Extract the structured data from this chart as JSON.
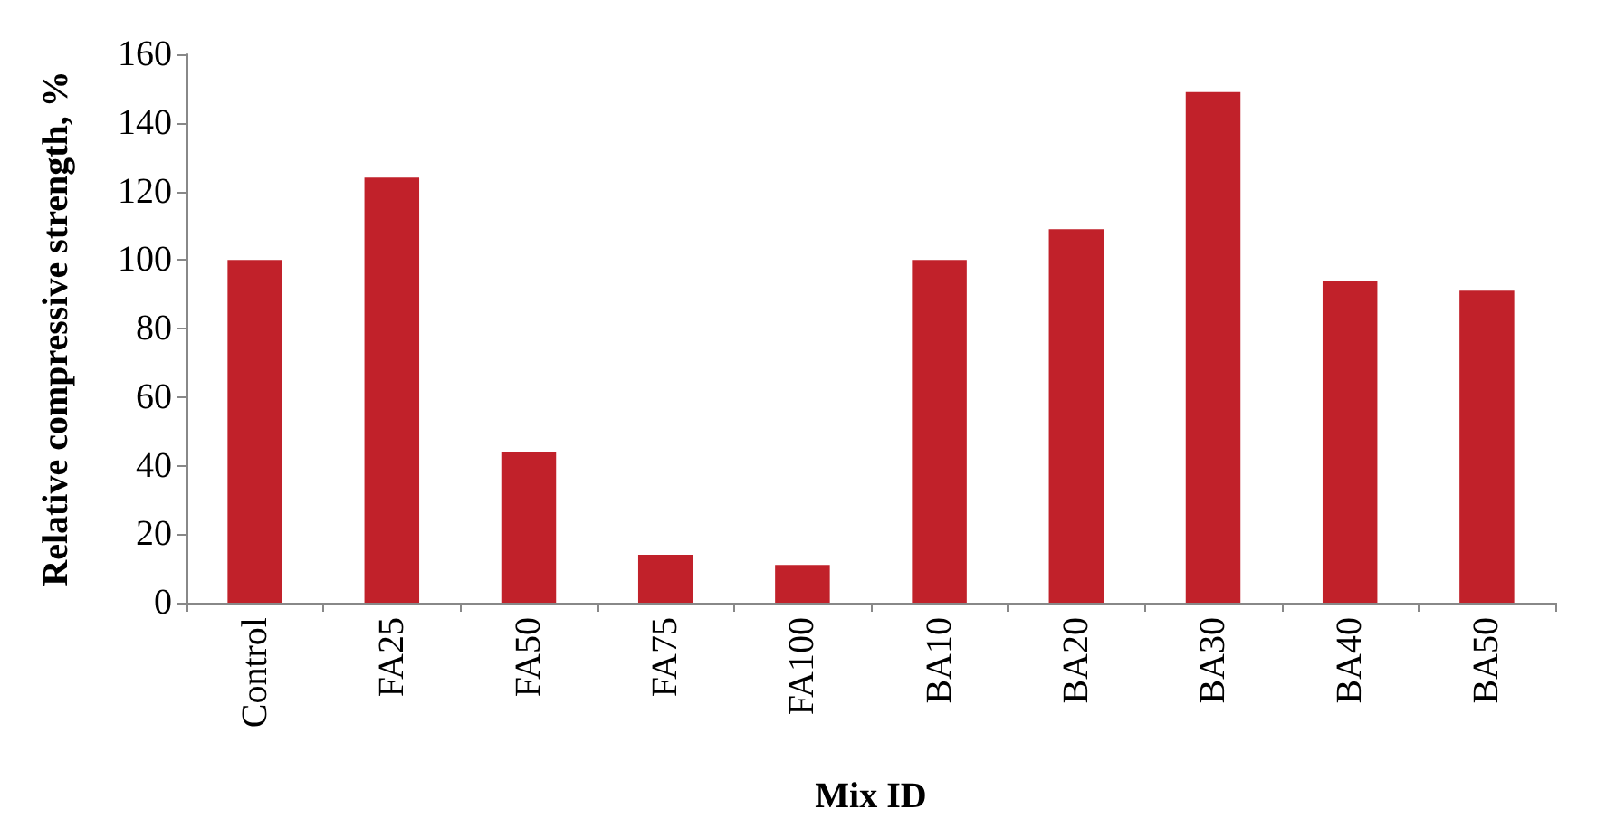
{
  "chart_data": {
    "type": "bar",
    "xlabel": "Mix ID",
    "ylabel": "Relative compressive strength, %",
    "categories": [
      "Control",
      "FA25",
      "FA50",
      "FA75",
      "FA100",
      "BA10",
      "BA20",
      "BA30",
      "BA40",
      "BA50"
    ],
    "values": [
      100,
      124,
      44,
      14,
      11,
      100,
      109,
      149,
      94,
      91
    ],
    "color": "#c1212a",
    "ylim": [
      0,
      160
    ],
    "yticks": [
      0,
      20,
      40,
      60,
      80,
      100,
      120,
      140,
      160
    ],
    "grid": false
  }
}
